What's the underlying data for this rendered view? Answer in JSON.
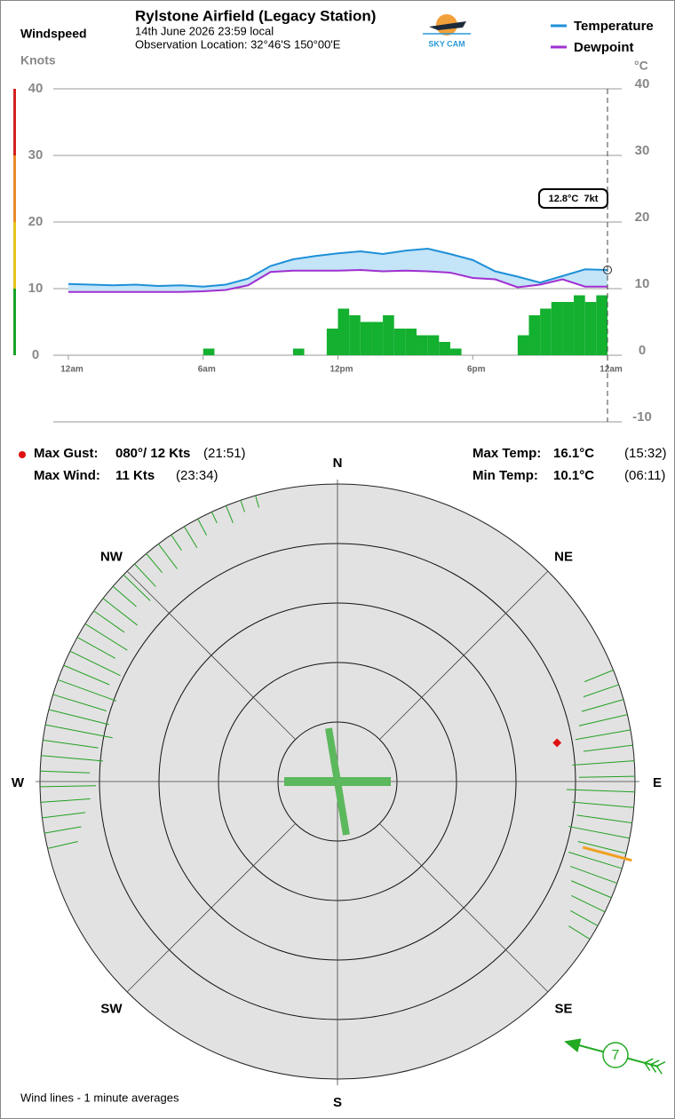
{
  "header": {
    "title": "Rylstone Airfield (Legacy Station)",
    "date": "14th June 2026  23:59 local",
    "location": "Observation Location: 32°46'S 150°00'E",
    "logo": "SKY CAM"
  },
  "chart_data": [
    {
      "type": "line",
      "y_label": "Windspeed",
      "y_unit": "Knots",
      "y2_unit": "°C",
      "x": [
        0,
        1,
        2,
        3,
        4,
        5,
        6,
        7,
        8,
        9,
        10,
        11,
        12,
        13,
        14,
        15,
        16,
        17,
        18,
        19,
        20,
        21,
        22,
        23,
        24
      ],
      "xlim": [
        0,
        24
      ],
      "xticks": [
        {
          "value": 0,
          "label": "12am"
        },
        {
          "value": 6,
          "label": "6am"
        },
        {
          "value": 12,
          "label": "12pm"
        },
        {
          "value": 18,
          "label": "6pm"
        },
        {
          "value": 24,
          "label": "12am"
        }
      ],
      "ylim": [
        0,
        40
      ],
      "yticks": [
        0,
        10,
        20,
        30,
        40
      ],
      "y2lim": [
        -10,
        40
      ],
      "y2ticks": [
        -10,
        0,
        10,
        20,
        30,
        40
      ],
      "grid": true,
      "speed_band_colors": [
        "#1aa32a",
        "#e6c31a",
        "#e88a2a",
        "#d42020"
      ],
      "fill_between": "#c4e4f8",
      "series": [
        {
          "name": "Temperature",
          "color": "#1e90d8",
          "axis": "y2",
          "values": [
            10.7,
            10.6,
            10.5,
            10.6,
            10.4,
            10.5,
            10.3,
            10.6,
            11.5,
            13.4,
            14.4,
            14.9,
            15.3,
            15.6,
            15.2,
            15.7,
            16.0,
            15.2,
            14.3,
            12.6,
            11.8,
            10.9,
            11.9,
            12.9,
            12.8
          ]
        },
        {
          "name": "Dewpoint",
          "color": "#a030d0",
          "axis": "y2",
          "values": [
            9.5,
            9.5,
            9.5,
            9.5,
            9.5,
            9.5,
            9.6,
            9.8,
            10.5,
            12.5,
            12.7,
            12.7,
            12.7,
            12.8,
            12.6,
            12.7,
            12.6,
            12.4,
            11.6,
            11.4,
            10.2,
            10.6,
            11.4,
            10.3,
            10.3
          ]
        }
      ],
      "wind_bars": {
        "color": "#14b030",
        "x": [
          0,
          0.5,
          1,
          1.5,
          2,
          2.5,
          3,
          3.5,
          4,
          4.5,
          5,
          5.5,
          6,
          6.5,
          7,
          7.5,
          8,
          8.5,
          9,
          9.5,
          10,
          10.5,
          11,
          11.5,
          12,
          12.5,
          13,
          13.5,
          14,
          14.5,
          15,
          15.5,
          16,
          16.5,
          17,
          17.5,
          18,
          18.5,
          19,
          19.5,
          20,
          20.5,
          21,
          21.5,
          22,
          22.5,
          23,
          23.5
        ],
        "values": [
          0,
          0,
          0,
          0,
          0,
          0,
          0,
          0,
          0,
          0,
          0,
          0,
          1,
          0,
          0,
          0,
          0,
          0,
          0,
          0,
          1,
          0,
          0,
          4,
          7,
          6,
          5,
          5,
          6,
          4,
          4,
          3,
          3,
          2,
          1,
          0,
          0,
          0,
          0,
          0,
          3,
          6,
          7,
          8,
          8,
          9,
          8,
          9
        ]
      },
      "annotation": {
        "text": "12.8°C  7kt",
        "x": 24,
        "y": 12.8
      }
    },
    {
      "type": "wind_rose",
      "compass": [
        "N",
        "NE",
        "E",
        "SE",
        "S",
        "SW",
        "W",
        "NW"
      ],
      "wind": {
        "color": "#22a022",
        "directions": [
          257,
          260,
          263,
          266,
          269,
          272,
          275,
          278,
          281,
          284,
          287,
          290,
          293,
          296,
          299,
          302,
          305,
          308,
          311,
          314,
          317,
          320,
          323,
          326,
          329,
          332,
          335,
          338,
          341,
          344,
          68,
          71,
          74,
          77,
          80,
          83,
          86,
          89,
          92,
          95,
          98,
          101,
          104,
          107,
          110,
          113,
          116,
          119,
          122
        ],
        "speeds": [
          5,
          6,
          7,
          8,
          9,
          8,
          10,
          9,
          11,
          10,
          9,
          10,
          8,
          9,
          7,
          8,
          6,
          7,
          5,
          6,
          5,
          4,
          5,
          3,
          4,
          3,
          2,
          3,
          2,
          2,
          5,
          6,
          7,
          8,
          9,
          8,
          10,
          9,
          11,
          10,
          9,
          10,
          8,
          9,
          8,
          7,
          6,
          5,
          4
        ]
      },
      "gust": {
        "direction": 80,
        "speed": 12,
        "color": "#e01010"
      },
      "current": {
        "direction": 105,
        "speed": 7,
        "color": "#f0a020"
      }
    }
  ],
  "stats": {
    "max_gust": {
      "label": "Max Gust:",
      "value": "080°/ 12 Kts",
      "time": "(21:51)"
    },
    "max_wind": {
      "label": "Max Wind:",
      "value": "11 Kts",
      "time": "(23:34)"
    },
    "max_temp": {
      "label": "Max Temp:",
      "value": "16.1°C",
      "time": "(15:32)"
    },
    "min_temp": {
      "label": "Min Temp:",
      "value": "10.1°C",
      "time": "(06:11)"
    }
  },
  "footer": "Wind lines - 1 minute averages"
}
